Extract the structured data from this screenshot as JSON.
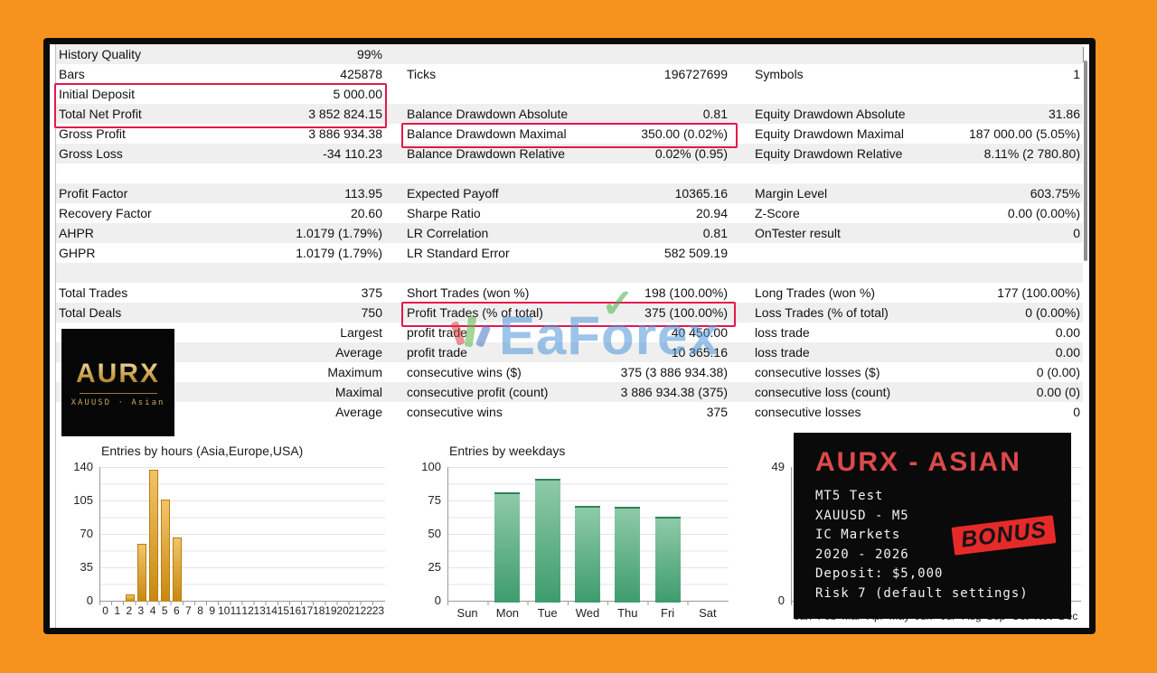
{
  "colors": {
    "frame_orange": "#F6921E",
    "highlight_red": "#E3174D",
    "progress_green": "#8FE986",
    "bar_gold": "#D89B1E",
    "bar_green": "#4BA375"
  },
  "stats": {
    "rows": [
      {
        "shade": true,
        "progress": true,
        "cells": [
          {
            "l": "History Quality",
            "v": "99%"
          },
          null,
          null
        ]
      },
      {
        "shade": false,
        "cells": [
          {
            "l": "Bars",
            "v": "425878"
          },
          {
            "l": "Ticks",
            "v": "196727699"
          },
          {
            "l": "Symbols",
            "v": "1"
          }
        ]
      },
      {
        "shade": false,
        "cells": [
          {
            "l": "Initial Deposit",
            "v": "5 000.00"
          },
          null,
          null
        ]
      },
      {
        "shade": true,
        "cells": [
          {
            "l": "Total Net Profit",
            "v": "3 852 824.15"
          },
          {
            "l": "Balance Drawdown Absolute",
            "v": "0.81"
          },
          {
            "l": "Equity Drawdown Absolute",
            "v": "31.86"
          }
        ]
      },
      {
        "shade": false,
        "cells": [
          {
            "l": "Gross Profit",
            "v": "3 886 934.38"
          },
          {
            "l": "Balance Drawdown Maximal",
            "v": "350.00 (0.02%)"
          },
          {
            "l": "Equity Drawdown Maximal",
            "v": "187 000.00 (5.05%)"
          }
        ]
      },
      {
        "shade": true,
        "cells": [
          {
            "l": "Gross Loss",
            "v": "-34 110.23"
          },
          {
            "l": "Balance Drawdown Relative",
            "v": "0.02% (0.95)"
          },
          {
            "l": "Equity Drawdown Relative",
            "v": "8.11% (2 780.80)"
          }
        ]
      },
      {
        "shade": false,
        "cells": [
          null,
          null,
          null
        ]
      },
      {
        "shade": true,
        "cells": [
          {
            "l": "Profit Factor",
            "v": "113.95"
          },
          {
            "l": "Expected Payoff",
            "v": "10365.16"
          },
          {
            "l": "Margin Level",
            "v": "603.75%"
          }
        ]
      },
      {
        "shade": false,
        "cells": [
          {
            "l": "Recovery Factor",
            "v": "20.60"
          },
          {
            "l": "Sharpe Ratio",
            "v": "20.94"
          },
          {
            "l": "Z-Score",
            "v": "0.00 (0.00%)"
          }
        ]
      },
      {
        "shade": true,
        "cells": [
          {
            "l": "AHPR",
            "v": "1.0179 (1.79%)"
          },
          {
            "l": "LR Correlation",
            "v": "0.81"
          },
          {
            "l": "OnTester result",
            "v": "0"
          }
        ]
      },
      {
        "shade": false,
        "cells": [
          {
            "l": "GHPR",
            "v": "1.0179 (1.79%)"
          },
          {
            "l": "LR Standard Error",
            "v": "582 509.19"
          },
          null
        ]
      },
      {
        "shade": true,
        "cells": [
          null,
          null,
          null
        ]
      },
      {
        "shade": false,
        "cells": [
          {
            "l": "Total Trades",
            "v": "375"
          },
          {
            "l": "Short Trades (won %)",
            "v": "198 (100.00%)"
          },
          {
            "l": "Long Trades (won %)",
            "v": "177 (100.00%)"
          }
        ]
      },
      {
        "shade": true,
        "cells": [
          {
            "l": "Total Deals",
            "v": "750"
          },
          {
            "l": "Profit Trades (% of total)",
            "v": "375 (100.00%)"
          },
          {
            "l": "Loss Trades (% of total)",
            "v": "0 (0.00%)"
          }
        ]
      },
      {
        "shade": false,
        "cells": [
          {
            "l": "",
            "v": "Largest"
          },
          {
            "l": "profit trade",
            "v": "40 450.00"
          },
          {
            "l": "loss trade",
            "v": "0.00"
          }
        ]
      },
      {
        "shade": true,
        "cells": [
          {
            "l": "",
            "v": "Average"
          },
          {
            "l": "profit trade",
            "v": "10 365.16"
          },
          {
            "l": "loss trade",
            "v": "0.00"
          }
        ]
      },
      {
        "shade": false,
        "cells": [
          {
            "l": "",
            "v": "Maximum"
          },
          {
            "l": "consecutive wins ($)",
            "v": "375 (3 886 934.38)"
          },
          {
            "l": "consecutive losses ($)",
            "v": "0 (0.00)"
          }
        ]
      },
      {
        "shade": true,
        "cells": [
          {
            "l": "",
            "v": "Maximal"
          },
          {
            "l": "consecutive profit (count)",
            "v": "3 886 934.38 (375)"
          },
          {
            "l": "consecutive loss (count)",
            "v": "0.00 (0)"
          }
        ]
      },
      {
        "shade": false,
        "cells": [
          {
            "l": "",
            "v": "Average"
          },
          {
            "l": "consecutive wins",
            "v": "375"
          },
          {
            "l": "consecutive losses",
            "v": "0"
          }
        ]
      }
    ]
  },
  "chart_data": [
    {
      "type": "bar",
      "title": "Entries by hours (Asia,Europe,USA)",
      "x_labels": [
        "0",
        "1",
        "2",
        "3",
        "4",
        "5",
        "6",
        "7",
        "8",
        "9",
        "10",
        "11",
        "12",
        "13",
        "14",
        "15",
        "16",
        "17",
        "18",
        "19",
        "20",
        "21",
        "22",
        "23"
      ],
      "values": [
        0,
        0,
        7,
        60,
        137,
        106,
        66,
        0,
        0,
        0,
        0,
        0,
        0,
        0,
        0,
        0,
        0,
        0,
        0,
        0,
        0,
        0,
        0,
        0
      ],
      "xlabel": "hour",
      "ylabel": "entries",
      "ylim": [
        0,
        140
      ],
      "yticks": [
        0,
        35,
        70,
        105,
        140
      ],
      "grid": true,
      "legend": "none",
      "bar_color": "#D89B1E"
    },
    {
      "type": "bar",
      "title": "Entries by weekdays",
      "x_labels": [
        "Sun",
        "Mon",
        "Tue",
        "Wed",
        "Thu",
        "Fri",
        "Sat"
      ],
      "values": [
        0,
        81,
        91,
        71,
        70,
        63,
        0
      ],
      "xlabel": "weekday",
      "ylabel": "entries",
      "ylim": [
        0,
        100
      ],
      "yticks": [
        0,
        25,
        50,
        75,
        100
      ],
      "grid": true,
      "legend": "none",
      "bar_color": "#4BA375"
    },
    {
      "type": "bar",
      "title": "",
      "x_labels": [
        "Jan",
        "Feb",
        "Mar",
        "Apr",
        "May",
        "Jun",
        "Jul",
        "Aug",
        "Sep",
        "Oct",
        "Nov",
        "Dec"
      ],
      "values": [],
      "ylim": [
        0,
        49
      ],
      "yticks": [
        0,
        49
      ],
      "grid": true,
      "legend": "none",
      "bar_color": "#4BA375",
      "note": "chart area mostly covered by promo overlay; only axis labels 49/0 and label slivers visible"
    }
  ],
  "logo": {
    "line1": "AURX",
    "line2": "XAUUSD · Asian"
  },
  "promo": {
    "title": "AURX - ASIAN",
    "lines": [
      "MT5 Test",
      "XAUUSD - M5",
      "IC Markets",
      "2020 - 2026",
      "Deposit: $5,000",
      "Risk 7 (default settings)"
    ],
    "stamp": "BONUS"
  },
  "watermark": {
    "text": "EaForex",
    "p1": "EaF",
    "p2": "o",
    "p3": "rex",
    "check": "✓"
  }
}
